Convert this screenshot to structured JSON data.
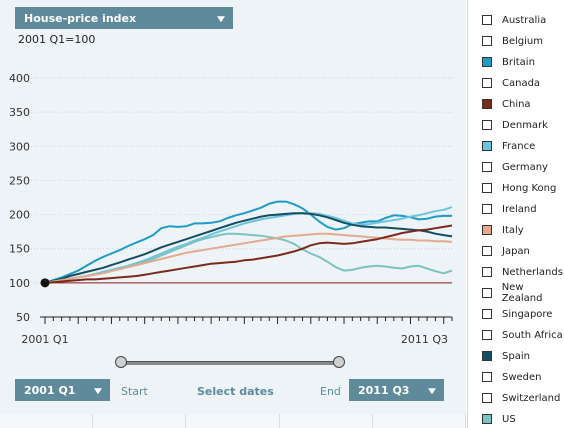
{
  "header": {
    "indicator_select": "House-price index",
    "baseline": "2001 Q1=100"
  },
  "controls": {
    "start_value": "2001 Q1",
    "start_label": "Start",
    "select_dates": "Select dates",
    "end_label": "End",
    "end_value": "2011 Q3"
  },
  "legend": [
    {
      "name": "Australia",
      "color": "#ffffff"
    },
    {
      "name": "Belgium",
      "color": "#ffffff"
    },
    {
      "name": "Britain",
      "color": "#1f9bc4"
    },
    {
      "name": "Canada",
      "color": "#ffffff"
    },
    {
      "name": "China",
      "color": "#7a2a1c"
    },
    {
      "name": "Denmark",
      "color": "#ffffff"
    },
    {
      "name": "France",
      "color": "#6ec4dd"
    },
    {
      "name": "Germany",
      "color": "#ffffff"
    },
    {
      "name": "Hong Kong",
      "color": "#ffffff"
    },
    {
      "name": "Ireland",
      "color": "#ffffff"
    },
    {
      "name": "Italy",
      "color": "#e3aa8e"
    },
    {
      "name": "Japan",
      "color": "#ffffff"
    },
    {
      "name": "Netherlands",
      "color": "#ffffff"
    },
    {
      "name": "New Zealand",
      "color": "#ffffff"
    },
    {
      "name": "Singapore",
      "color": "#ffffff"
    },
    {
      "name": "South Africa",
      "color": "#ffffff"
    },
    {
      "name": "Spain",
      "color": "#144e62"
    },
    {
      "name": "Sweden",
      "color": "#ffffff"
    },
    {
      "name": "Switzerland",
      "color": "#ffffff"
    },
    {
      "name": "US",
      "color": "#7cc2c1"
    }
  ],
  "chart_data": {
    "type": "line",
    "x_start_label": "2001 Q1",
    "x_end_label": "2011 Q3",
    "ylim": [
      50,
      400
    ],
    "yticks": [
      50,
      100,
      150,
      200,
      250,
      300,
      350,
      400
    ],
    "baseline": 100,
    "series": [
      {
        "name": "Britain",
        "color": "#1f9bc4",
        "values": [
          100,
          104,
          108,
          113,
          118,
          125,
          132,
          138,
          143,
          148,
          154,
          159,
          164,
          170,
          180,
          183,
          182,
          183,
          187,
          187,
          188,
          190,
          195,
          199,
          202,
          206,
          210,
          216,
          219,
          219,
          215,
          209,
          200,
          190,
          182,
          178,
          180,
          186,
          188,
          190,
          190,
          195,
          199,
          198,
          196,
          193,
          194,
          197,
          198,
          198
        ]
      },
      {
        "name": "France",
        "color": "#6ec4dd",
        "values": [
          100,
          102,
          104,
          106,
          108,
          110,
          113,
          116,
          119,
          122,
          125,
          129,
          133,
          138,
          143,
          148,
          153,
          157,
          162,
          166,
          171,
          175,
          179,
          183,
          187,
          190,
          193,
          195,
          197,
          199,
          201,
          202,
          202,
          201,
          198,
          195,
          191,
          187,
          185,
          186,
          188,
          190,
          192,
          194,
          197,
          199,
          202,
          205,
          207,
          211
        ]
      },
      {
        "name": "US",
        "color": "#7cc2c1",
        "values": [
          100,
          102,
          104,
          106,
          108,
          110,
          112,
          115,
          118,
          121,
          124,
          127,
          131,
          135,
          140,
          145,
          150,
          155,
          160,
          164,
          167,
          170,
          172,
          172,
          171,
          170,
          169,
          167,
          165,
          162,
          157,
          149,
          143,
          138,
          131,
          123,
          118,
          119,
          122,
          124,
          125,
          124,
          122,
          121,
          124,
          125,
          121,
          117,
          114,
          118
        ]
      },
      {
        "name": "Spain",
        "color": "#144e62",
        "values": [
          100,
          103,
          106,
          110,
          113,
          116,
          119,
          122,
          126,
          130,
          134,
          138,
          142,
          147,
          152,
          156,
          160,
          164,
          168,
          172,
          176,
          180,
          184,
          188,
          191,
          194,
          197,
          199,
          200,
          201,
          202,
          202,
          201,
          199,
          196,
          192,
          188,
          185,
          183,
          182,
          181,
          181,
          180,
          179,
          178,
          177,
          175,
          172,
          170,
          168
        ]
      },
      {
        "name": "Italy",
        "color": "#e3aa8e",
        "values": [
          100,
          102,
          104,
          106,
          108,
          110,
          112,
          114,
          117,
          120,
          123,
          126,
          129,
          132,
          135,
          138,
          141,
          144,
          146,
          148,
          150,
          152,
          154,
          156,
          158,
          160,
          162,
          164,
          166,
          168,
          169,
          170,
          171,
          172,
          172,
          171,
          170,
          169,
          168,
          167,
          166,
          165,
          164,
          163,
          163,
          162,
          162,
          161,
          161,
          160
        ]
      },
      {
        "name": "China",
        "color": "#7a2a1c",
        "values": [
          100,
          101,
          102,
          103,
          104,
          105,
          105,
          106,
          107,
          108,
          109,
          110,
          112,
          114,
          116,
          118,
          120,
          122,
          124,
          126,
          128,
          129,
          130,
          131,
          133,
          134,
          136,
          138,
          140,
          143,
          146,
          150,
          155,
          158,
          159,
          158,
          157,
          158,
          160,
          162,
          164,
          167,
          170,
          173,
          175,
          177,
          178,
          180,
          182,
          184
        ]
      }
    ]
  }
}
